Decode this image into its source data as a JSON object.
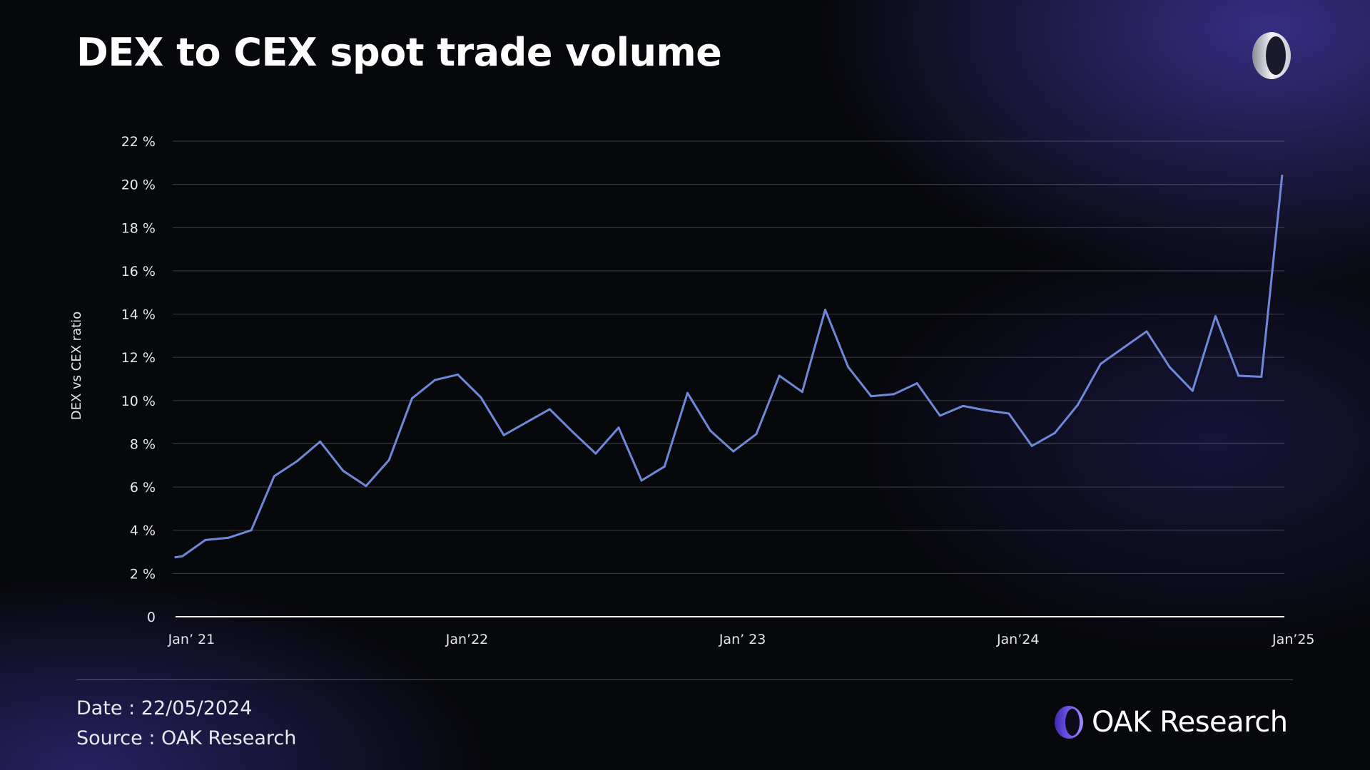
{
  "header": {
    "title": "DEX to CEX spot trade volume"
  },
  "footer": {
    "date": "Date : 22/05/2024",
    "source": "Source : OAK Research",
    "brand_word1": "OAK",
    "brand_word2": "Research"
  },
  "colors": {
    "line": "#7088d8",
    "accent": "#6a4fe0",
    "background": "#07080c"
  },
  "icons": {
    "top_right": "oak-logo-icon",
    "footer": "oak-logo-icon"
  },
  "chart_data": {
    "type": "line",
    "title": "DEX to CEX spot trade volume",
    "xlabel": "",
    "ylabel": "DEX vs CEX ratio",
    "ylim": [
      0,
      22
    ],
    "y_ticks": [
      0,
      2,
      4,
      6,
      8,
      10,
      12,
      14,
      16,
      18,
      20,
      22
    ],
    "y_tick_labels": [
      "0",
      "2 %",
      "4 %",
      "6 %",
      "8 %",
      "10 %",
      "12 %",
      "14 %",
      "16 %",
      "18 %",
      "20 %",
      "22 %"
    ],
    "x_ticks": [
      0,
      12,
      24,
      36,
      48
    ],
    "x_tick_labels": [
      "Jan’ 21",
      "Jan’22",
      "Jan’ 23",
      "Jan’24",
      "Jan’25"
    ],
    "xlim": [
      -0.2,
      48.1
    ],
    "grid": true,
    "x": [
      -0.2,
      0.1,
      1.1,
      2.1,
      3.1,
      4.1,
      5.1,
      6.1,
      7.1,
      8.1,
      9.1,
      10.1,
      11.1,
      12.1,
      13.1,
      14.1,
      15.1,
      16.1,
      17.1,
      18.1,
      19.1,
      20.1,
      21.1,
      22.1,
      23.1,
      24.1,
      25.1,
      26.1,
      27.1,
      28.1,
      29.1,
      30.1,
      31.1,
      32.1,
      33.1,
      34.1,
      35.1,
      36.1,
      37.1,
      38.1,
      39.1,
      40.1,
      41.1,
      42.1,
      43.1,
      44.1,
      45.1,
      46.1,
      47.1,
      48.0
    ],
    "series": [
      {
        "values": [
          2.75,
          2.8,
          3.55,
          3.65,
          4.0,
          6.5,
          7.2,
          8.1,
          6.75,
          6.05,
          7.25,
          10.1,
          10.95,
          11.2,
          10.15,
          8.4,
          9.0,
          9.6,
          8.55,
          7.55,
          8.75,
          6.3,
          6.95,
          10.35,
          8.6,
          7.65,
          8.45,
          11.15,
          10.4,
          14.2,
          11.55,
          10.2,
          10.3,
          10.8,
          9.3,
          9.75,
          9.55,
          9.4,
          7.9,
          8.5,
          9.8,
          11.7,
          12.45,
          13.2,
          11.55,
          10.45,
          13.9,
          11.15,
          11.1,
          20.4
        ]
      }
    ]
  }
}
